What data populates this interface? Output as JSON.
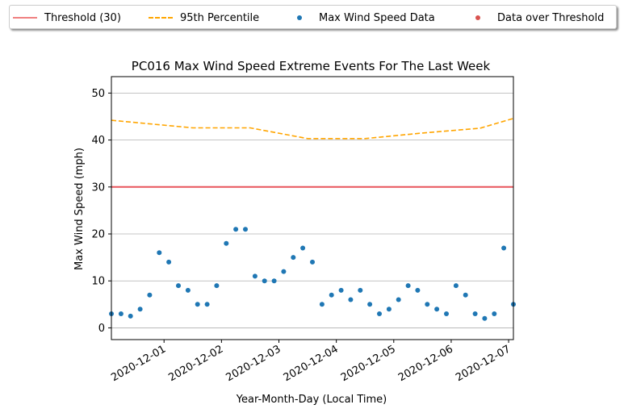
{
  "chart_data": {
    "type": "scatter",
    "title": "PC016 Max Wind Speed Extreme Events For The Last Week",
    "xlabel": "Year-Month-Day (Local Time)",
    "ylabel": "Max Wind Speed (mph)",
    "xlim": [
      "2020-11-30T02:00",
      "2020-12-07T02:00"
    ],
    "ylim": [
      -2.5,
      53.5
    ],
    "yticks": [
      0,
      10,
      20,
      30,
      40,
      50
    ],
    "xticks": [
      "2020-12-01",
      "2020-12-02",
      "2020-12-03",
      "2020-12-04",
      "2020-12-05",
      "2020-12-06",
      "2020-12-07"
    ],
    "grid": "horizontal",
    "legend_position": "top, outside plot",
    "threshold": {
      "name": "Threshold (30)",
      "value": 30,
      "color": "#e8535a"
    },
    "percentile95": {
      "name": "95th Percentile",
      "color": "#ffa500",
      "x": [
        "2020-11-30T02:00",
        "2020-12-01T12:00",
        "2020-12-02T12:00",
        "2020-12-03T12:00",
        "2020-12-04T12:00",
        "2020-12-05T12:00",
        "2020-12-06T12:00",
        "2020-12-07T02:00"
      ],
      "y": [
        44.2,
        42.6,
        42.6,
        40.3,
        40.3,
        41.5,
        42.5,
        44.6
      ]
    },
    "series": [
      {
        "name": "Max Wind Speed Data",
        "color": "#1f77b4",
        "x": [
          "2020-11-30T02:00",
          "2020-11-30T06:00",
          "2020-11-30T10:00",
          "2020-11-30T14:00",
          "2020-11-30T18:00",
          "2020-11-30T22:00",
          "2020-12-01T02:00",
          "2020-12-01T06:00",
          "2020-12-01T10:00",
          "2020-12-01T14:00",
          "2020-12-01T18:00",
          "2020-12-01T22:00",
          "2020-12-02T02:00",
          "2020-12-02T06:00",
          "2020-12-02T10:00",
          "2020-12-02T14:00",
          "2020-12-02T18:00",
          "2020-12-02T22:00",
          "2020-12-03T02:00",
          "2020-12-03T06:00",
          "2020-12-03T10:00",
          "2020-12-03T14:00",
          "2020-12-03T18:00",
          "2020-12-03T22:00",
          "2020-12-04T02:00",
          "2020-12-04T06:00",
          "2020-12-04T10:00",
          "2020-12-04T14:00",
          "2020-12-04T18:00",
          "2020-12-04T22:00",
          "2020-12-05T02:00",
          "2020-12-05T06:00",
          "2020-12-05T10:00",
          "2020-12-05T14:00",
          "2020-12-05T18:00",
          "2020-12-05T22:00",
          "2020-12-06T02:00",
          "2020-12-06T06:00",
          "2020-12-06T10:00",
          "2020-12-06T14:00",
          "2020-12-06T18:00",
          "2020-12-06T22:00",
          "2020-12-07T02:00"
        ],
        "y": [
          3,
          3,
          2.5,
          4,
          7,
          16,
          14,
          9,
          8,
          5,
          5,
          9,
          18,
          21,
          21,
          11,
          10,
          10,
          12,
          15,
          17,
          14,
          5,
          7,
          8,
          6,
          8,
          5,
          3,
          4,
          6,
          9,
          8,
          5,
          4,
          3,
          9,
          7,
          3,
          2,
          3,
          17,
          5
        ]
      },
      {
        "name": "Data over Threshold",
        "color": "#d9534f",
        "x": [],
        "y": []
      }
    ]
  }
}
